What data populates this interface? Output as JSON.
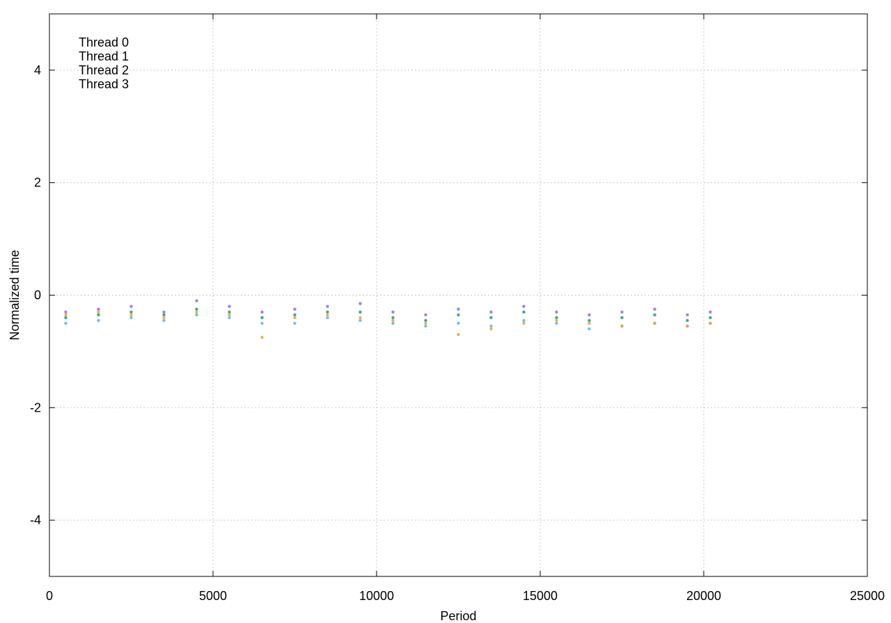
{
  "chart_data": {
    "type": "scatter",
    "title": "",
    "xlabel": "Period",
    "ylabel": "Normalized time",
    "xlim": [
      0,
      25000
    ],
    "ylim": [
      -5,
      5
    ],
    "xticks": [
      0,
      5000,
      10000,
      15000,
      20000,
      25000
    ],
    "xtick_labels": [
      "0",
      "5000",
      "10000",
      "15000",
      "20000",
      "25000"
    ],
    "yticks": [
      -4,
      -2,
      0,
      2,
      4
    ],
    "ytick_labels": [
      "-4",
      "-2",
      "0",
      "2",
      "4"
    ],
    "grid": true,
    "legend_placement": "top-left",
    "series": [
      {
        "name": "Thread 0",
        "color": "#9467e0",
        "points": [
          [
            500,
            -0.3
          ],
          [
            1500,
            -0.25
          ],
          [
            2500,
            -0.2
          ],
          [
            3500,
            -0.3
          ],
          [
            4500,
            -0.1
          ],
          [
            5500,
            -0.2
          ],
          [
            6500,
            -0.3
          ],
          [
            7500,
            -0.25
          ],
          [
            8500,
            -0.2
          ],
          [
            9500,
            -0.15
          ],
          [
            10500,
            -0.3
          ],
          [
            11500,
            -0.35
          ],
          [
            12500,
            -0.25
          ],
          [
            13500,
            -0.3
          ],
          [
            14500,
            -0.2
          ],
          [
            15500,
            -0.3
          ],
          [
            16500,
            -0.35
          ],
          [
            17500,
            -0.3
          ],
          [
            18500,
            -0.25
          ],
          [
            19500,
            -0.35
          ],
          [
            20200,
            -0.3
          ]
        ]
      },
      {
        "name": "Thread 1",
        "color": "#1a9a75",
        "points": [
          [
            500,
            -0.4
          ],
          [
            1500,
            -0.35
          ],
          [
            2500,
            -0.3
          ],
          [
            3500,
            -0.35
          ],
          [
            4500,
            -0.25
          ],
          [
            5500,
            -0.3
          ],
          [
            6500,
            -0.4
          ],
          [
            7500,
            -0.35
          ],
          [
            8500,
            -0.3
          ],
          [
            9500,
            -0.3
          ],
          [
            10500,
            -0.4
          ],
          [
            11500,
            -0.45
          ],
          [
            12500,
            -0.35
          ],
          [
            13500,
            -0.4
          ],
          [
            14500,
            -0.3
          ],
          [
            15500,
            -0.4
          ],
          [
            16500,
            -0.45
          ],
          [
            17500,
            -0.4
          ],
          [
            18500,
            -0.35
          ],
          [
            19500,
            -0.45
          ],
          [
            20200,
            -0.4
          ]
        ]
      },
      {
        "name": "Thread 2",
        "color": "#56b4e9",
        "points": [
          [
            500,
            -0.5
          ],
          [
            1500,
            -0.45
          ],
          [
            2500,
            -0.4
          ],
          [
            3500,
            -0.45
          ],
          [
            4500,
            -0.35
          ],
          [
            5500,
            -0.4
          ],
          [
            6500,
            -0.5
          ],
          [
            7500,
            -0.5
          ],
          [
            8500,
            -0.4
          ],
          [
            9500,
            -0.45
          ],
          [
            10500,
            -0.5
          ],
          [
            11500,
            -0.55
          ],
          [
            12500,
            -0.5
          ],
          [
            13500,
            -0.55
          ],
          [
            14500,
            -0.45
          ],
          [
            15500,
            -0.5
          ],
          [
            16500,
            -0.6
          ],
          [
            17500,
            -0.55
          ],
          [
            18500,
            -0.5
          ],
          [
            19500,
            -0.55
          ],
          [
            20200,
            -0.5
          ]
        ]
      },
      {
        "name": "Thread 3",
        "color": "#e6a532",
        "points": [
          [
            500,
            -0.35
          ],
          [
            1500,
            -0.3
          ],
          [
            2500,
            -0.35
          ],
          [
            3500,
            -0.4
          ],
          [
            4500,
            -0.3
          ],
          [
            5500,
            -0.35
          ],
          [
            6500,
            -0.75
          ],
          [
            7500,
            -0.4
          ],
          [
            8500,
            -0.35
          ],
          [
            9500,
            -0.4
          ],
          [
            10500,
            -0.45
          ],
          [
            11500,
            -0.5
          ],
          [
            12500,
            -0.7
          ],
          [
            13500,
            -0.6
          ],
          [
            14500,
            -0.5
          ],
          [
            15500,
            -0.45
          ],
          [
            16500,
            -0.5
          ],
          [
            17500,
            -0.55
          ],
          [
            18500,
            -0.5
          ],
          [
            19500,
            -0.55
          ],
          [
            20200,
            -0.5
          ]
        ]
      }
    ]
  }
}
